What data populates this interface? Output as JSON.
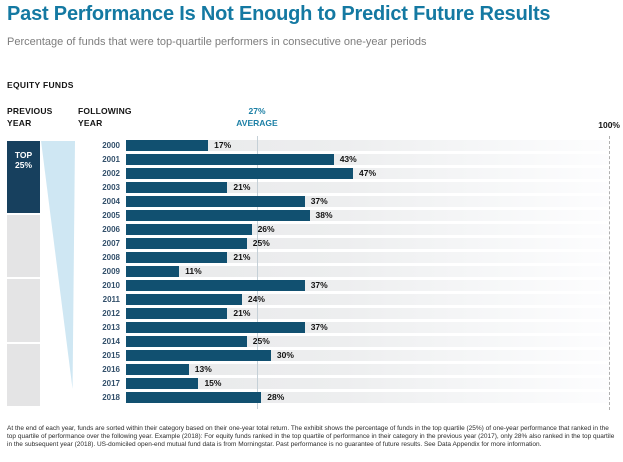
{
  "header": {
    "title": "Past Performance Is Not Enough to Predict Future Results",
    "subtitle": "Percentage of funds that were top-quartile performers in consecutive one-year periods",
    "section_label": "EQUITY FUNDS"
  },
  "chart": {
    "previous_year_label": "PREVIOUS YEAR",
    "following_year_label": "FOLLOWING YEAR",
    "average_value_label": "27%",
    "average_word": "AVERAGE",
    "axis_max_label": "100%",
    "top_box_line1": "TOP",
    "top_box_line2": "25%"
  },
  "chart_data": {
    "type": "bar",
    "orientation": "horizontal",
    "title": "Past Performance Is Not Enough to Predict Future Results",
    "subtitle": "Percentage of funds that were top-quartile performers in consecutive one-year periods",
    "categories": [
      "2000",
      "2001",
      "2002",
      "2003",
      "2004",
      "2005",
      "2006",
      "2007",
      "2008",
      "2009",
      "2010",
      "2011",
      "2012",
      "2013",
      "2014",
      "2015",
      "2016",
      "2017",
      "2018"
    ],
    "values": [
      17,
      43,
      47,
      21,
      37,
      38,
      26,
      25,
      21,
      11,
      37,
      24,
      21,
      37,
      25,
      30,
      13,
      15,
      28
    ],
    "value_labels": [
      "17%",
      "43%",
      "47%",
      "21%",
      "37%",
      "38%",
      "26%",
      "25%",
      "21%",
      "11%",
      "37%",
      "24%",
      "21%",
      "37%",
      "25%",
      "30%",
      "13%",
      "15%",
      "28%"
    ],
    "xlabel": "",
    "ylabel": "FOLLOWING YEAR",
    "xlim": [
      0,
      100
    ],
    "average": 27,
    "grid": false,
    "legend": null,
    "annotations": [
      "27% AVERAGE",
      "100%",
      "TOP 25%"
    ]
  },
  "colors": {
    "title_accent": "#1479a2",
    "bar": "#115070",
    "top_box": "#17405e",
    "funnel": "#cfe7f3",
    "quartile_gray": "#e4e4e5",
    "year": "#33506b",
    "avg": "#1b7fa5",
    "avg_line": "#c5d0d7",
    "dash_line": "#b0b0b0"
  },
  "footnote": "At the end of each year, funds are sorted within their category based on their one-year total return. The exhibit shows the percentage of funds in the top quartile (25%) of one-year performance that ranked in the top quartile of performance over the following year. Example (2018): For equity funds ranked in the top quartile of performance in their category in the previous year (2017), only 28% also ranked in the top quartile in the subsequent year (2018). US-domiciled open-end mutual fund data is from Morningstar. Past performance is no guarantee of future results. See Data Appendix for more information."
}
